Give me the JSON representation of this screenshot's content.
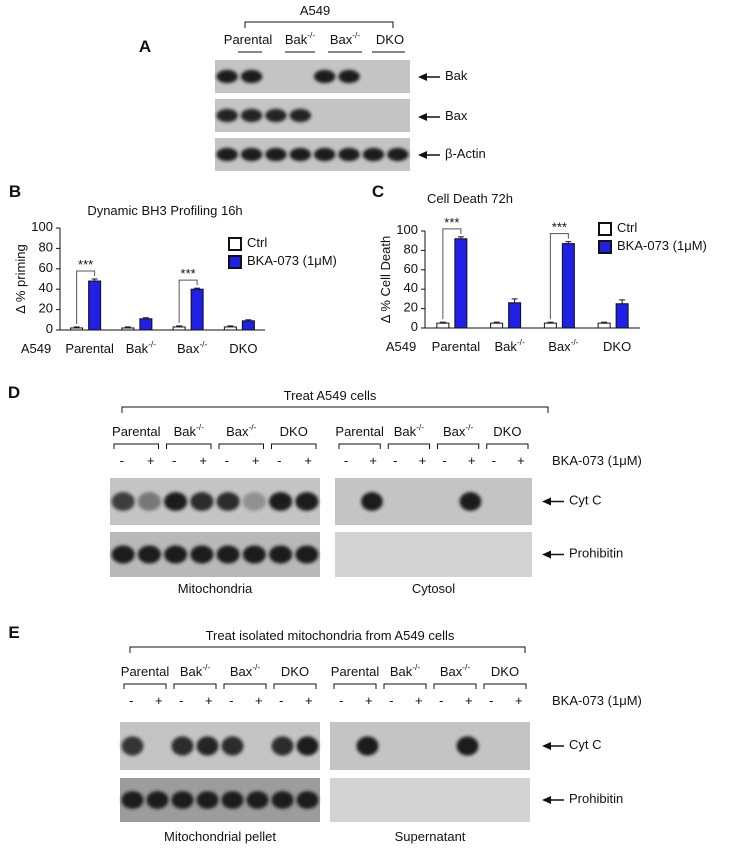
{
  "panel_a": {
    "label": "A",
    "cell_line": "A549",
    "lanes": [
      "Parental",
      "Bak-/-",
      "Bax-/-",
      "DKO"
    ],
    "blots": [
      "Bak",
      "Bax",
      "β-Actin"
    ]
  },
  "chart_data": [
    {
      "type": "bar",
      "panel_label": "B",
      "title": "Dynamic BH3 Profiling 16h",
      "y_label": "Δ % priming",
      "category_prefix": "A549",
      "categories": [
        "Parental",
        "Bak-/-",
        "Bax-/-",
        "DKO"
      ],
      "series": [
        {
          "name": "Ctrl",
          "color": "#ffffff",
          "values": [
            2,
            2,
            3,
            3
          ],
          "errors": [
            1,
            1,
            1,
            1
          ]
        },
        {
          "name": "BKA-073 (1μM)",
          "color": "#1f1fe6",
          "values": [
            48,
            11,
            40,
            9
          ],
          "errors": [
            2,
            1,
            1,
            1
          ]
        }
      ],
      "annotations": [
        "***",
        null,
        "***",
        null
      ],
      "ylim": [
        0,
        100
      ],
      "yticks": [
        0,
        20,
        40,
        60,
        80,
        100
      ]
    },
    {
      "type": "bar",
      "panel_label": "C",
      "title": "Cell Death 72h",
      "y_label": "Δ % Cell Death",
      "category_prefix": "A549",
      "categories": [
        "Parental",
        "Bak-/-",
        "Bax-/-",
        "DKO"
      ],
      "series": [
        {
          "name": "Ctrl",
          "color": "#ffffff",
          "values": [
            5,
            5,
            5,
            5
          ],
          "errors": [
            1,
            1,
            1,
            1
          ]
        },
        {
          "name": "BKA-073 (1μM)",
          "color": "#1f1fe6",
          "values": [
            92,
            26,
            87,
            25
          ],
          "errors": [
            2,
            4,
            2,
            4
          ]
        }
      ],
      "annotations": [
        "***",
        null,
        "***",
        null
      ],
      "ylim": [
        0,
        100
      ],
      "yticks": [
        0,
        20,
        40,
        60,
        80,
        100
      ]
    }
  ],
  "panel_d": {
    "label": "D",
    "title": "Treat A549 cells",
    "fractions": [
      {
        "name": "Mitochondria",
        "lanes": [
          "Parental",
          "Bak-/-",
          "Bax-/-",
          "DKO"
        ]
      },
      {
        "name": "Cytosol",
        "lanes": [
          "Parental",
          "Bak-/-",
          "Bax-/-",
          "DKO"
        ]
      }
    ],
    "signs": [
      "-",
      "+"
    ],
    "treatment": "BKA-073 (1μM)",
    "blots": [
      "Cyt C",
      "Prohibitin"
    ]
  },
  "panel_e": {
    "label": "E",
    "title": "Treat isolated mitochondria from A549 cells",
    "fractions": [
      {
        "name": "Mitochondrial pellet",
        "lanes": [
          "Parental",
          "Bak-/-",
          "Bax-/-",
          "DKO"
        ]
      },
      {
        "name": "Supernatant",
        "lanes": [
          "Parental",
          "Bak-/-",
          "Bax-/-",
          "DKO"
        ]
      }
    ],
    "signs": [
      "-",
      "+"
    ],
    "treatment": "BKA-073 (1μM)",
    "blots": [
      "Cyt C",
      "Prohibitin"
    ]
  }
}
